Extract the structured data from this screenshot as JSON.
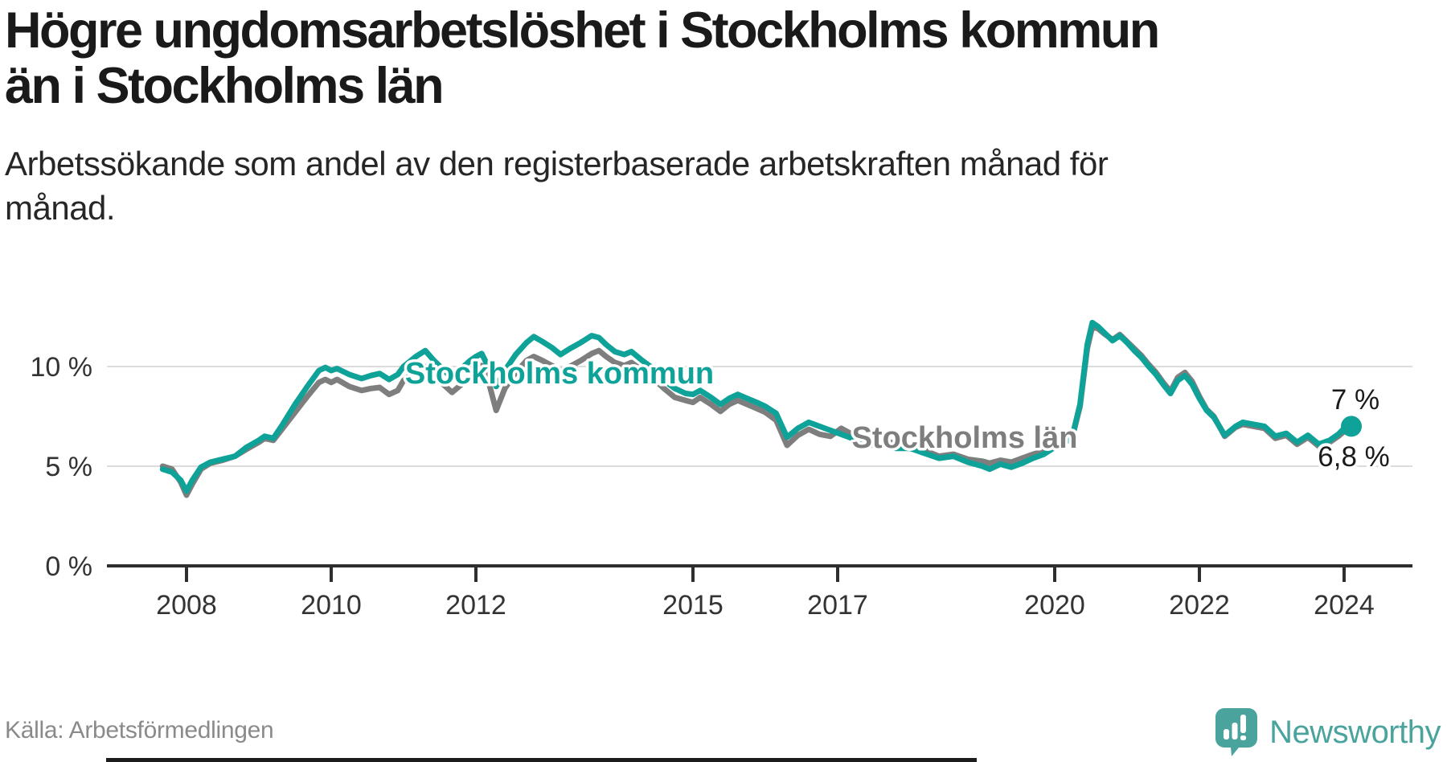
{
  "header": {
    "title_lines": [
      "Högre ungdomsarbetslöshet i Stockholms kommun",
      "än i Stockholms län"
    ],
    "subtitle_lines": [
      "Arbetssökande som andel av den registerbaserade arbetskraften månad för",
      "månad."
    ]
  },
  "footer": {
    "source": "Källa: Arbetsförmedlingen",
    "brand_name": "Newsworthy"
  },
  "colors": {
    "accent_teal": "#0fa298",
    "series_gray": "#7e7e7e",
    "logo_teal": "#4aa49d",
    "gridline": "#dcdcdc",
    "axis": "#2e2e2e",
    "tick_label": "#333333",
    "end_label": "#1a1a1a"
  },
  "chart_data": {
    "type": "line",
    "unit": "%",
    "x_axis": {
      "ticks": [
        {
          "year": 2008,
          "label": "2008"
        },
        {
          "year": 2010,
          "label": "2010"
        },
        {
          "year": 2012,
          "label": "2012"
        },
        {
          "year": 2015,
          "label": "2015"
        },
        {
          "year": 2017,
          "label": "2017"
        },
        {
          "year": 2020,
          "label": "2020"
        },
        {
          "year": 2022,
          "label": "2022"
        },
        {
          "year": 2024,
          "label": "2024"
        }
      ],
      "range": [
        2006.9,
        2024.95
      ]
    },
    "y_axis": {
      "ticks": [
        {
          "value": 0,
          "label": "0 %"
        },
        {
          "value": 5,
          "label": "5 %"
        },
        {
          "value": 10,
          "label": "10 %"
        }
      ],
      "range": [
        0,
        15
      ],
      "grid": true
    },
    "legend_position": "inline-labels",
    "series": [
      {
        "id": "kommun",
        "name": "Stockholms kommun",
        "color": "#0fa298",
        "end_label": "7 %",
        "end_value": 7.0
      },
      {
        "id": "lan",
        "name": "Stockholms län",
        "color": "#7e7e7e",
        "end_label": "6,8 %",
        "end_value": 6.8
      }
    ],
    "points_format": [
      "year",
      "kommun",
      "lan"
    ],
    "points": [
      [
        2007.67,
        4.85,
        5.0
      ],
      [
        2007.8,
        4.7,
        4.85
      ],
      [
        2007.92,
        4.3,
        4.2
      ],
      [
        2008.0,
        3.75,
        3.55
      ],
      [
        2008.08,
        4.3,
        4.1
      ],
      [
        2008.2,
        4.95,
        4.85
      ],
      [
        2008.33,
        5.2,
        5.15
      ],
      [
        2008.5,
        5.35,
        5.3
      ],
      [
        2008.67,
        5.5,
        5.5
      ],
      [
        2008.83,
        5.95,
        5.85
      ],
      [
        2009.0,
        6.3,
        6.2
      ],
      [
        2009.08,
        6.5,
        6.4
      ],
      [
        2009.2,
        6.4,
        6.3
      ],
      [
        2009.33,
        7.1,
        6.9
      ],
      [
        2009.5,
        8.1,
        7.7
      ],
      [
        2009.67,
        9.0,
        8.5
      ],
      [
        2009.83,
        9.8,
        9.2
      ],
      [
        2009.92,
        9.95,
        9.35
      ],
      [
        2010.0,
        9.8,
        9.2
      ],
      [
        2010.08,
        9.9,
        9.35
      ],
      [
        2010.25,
        9.6,
        9.0
      ],
      [
        2010.42,
        9.4,
        8.8
      ],
      [
        2010.55,
        9.55,
        8.9
      ],
      [
        2010.67,
        9.65,
        8.95
      ],
      [
        2010.8,
        9.35,
        8.6
      ],
      [
        2010.92,
        9.6,
        8.8
      ],
      [
        2011.0,
        10.0,
        9.3
      ],
      [
        2011.17,
        10.5,
        9.8
      ],
      [
        2011.3,
        10.8,
        10.0
      ],
      [
        2011.42,
        10.3,
        9.5
      ],
      [
        2011.55,
        9.85,
        9.1
      ],
      [
        2011.67,
        9.4,
        8.7
      ],
      [
        2011.8,
        9.9,
        9.1
      ],
      [
        2011.92,
        10.3,
        9.6
      ],
      [
        2012.0,
        10.5,
        9.9
      ],
      [
        2012.08,
        10.65,
        10.05
      ],
      [
        2012.17,
        10.0,
        9.3
      ],
      [
        2012.28,
        9.0,
        7.8
      ],
      [
        2012.4,
        9.8,
        8.9
      ],
      [
        2012.55,
        10.6,
        9.7
      ],
      [
        2012.7,
        11.2,
        10.3
      ],
      [
        2012.8,
        11.5,
        10.5
      ],
      [
        2012.92,
        11.25,
        10.3
      ],
      [
        2013.05,
        10.95,
        10.05
      ],
      [
        2013.17,
        10.6,
        9.8
      ],
      [
        2013.3,
        10.9,
        10.0
      ],
      [
        2013.45,
        11.2,
        10.3
      ],
      [
        2013.6,
        11.55,
        10.65
      ],
      [
        2013.7,
        11.45,
        10.8
      ],
      [
        2013.8,
        11.1,
        10.5
      ],
      [
        2013.92,
        10.75,
        10.2
      ],
      [
        2014.05,
        10.6,
        10.05
      ],
      [
        2014.15,
        10.75,
        10.2
      ],
      [
        2014.3,
        10.3,
        9.8
      ],
      [
        2014.45,
        9.9,
        9.4
      ],
      [
        2014.6,
        9.3,
        8.9
      ],
      [
        2014.75,
        8.9,
        8.45
      ],
      [
        2014.9,
        8.65,
        8.3
      ],
      [
        2015.0,
        8.6,
        8.2
      ],
      [
        2015.1,
        8.8,
        8.45
      ],
      [
        2015.25,
        8.45,
        8.1
      ],
      [
        2015.38,
        8.1,
        7.75
      ],
      [
        2015.5,
        8.4,
        8.1
      ],
      [
        2015.62,
        8.6,
        8.3
      ],
      [
        2015.75,
        8.4,
        8.1
      ],
      [
        2015.88,
        8.2,
        7.9
      ],
      [
        2016.0,
        8.0,
        7.7
      ],
      [
        2016.15,
        7.65,
        7.3
      ],
      [
        2016.3,
        6.45,
        6.05
      ],
      [
        2016.45,
        6.9,
        6.55
      ],
      [
        2016.6,
        7.2,
        6.85
      ],
      [
        2016.75,
        7.0,
        6.6
      ],
      [
        2016.9,
        6.8,
        6.5
      ],
      [
        2017.05,
        6.6,
        6.9
      ],
      [
        2017.2,
        6.4,
        6.6
      ],
      [
        2017.4,
        6.0,
        6.2
      ],
      [
        2017.6,
        6.2,
        6.4
      ],
      [
        2017.8,
        5.9,
        6.1
      ],
      [
        2018.0,
        5.9,
        6.0
      ],
      [
        2018.2,
        5.65,
        5.8
      ],
      [
        2018.4,
        5.4,
        5.5
      ],
      [
        2018.6,
        5.5,
        5.6
      ],
      [
        2018.8,
        5.2,
        5.35
      ],
      [
        2019.0,
        5.0,
        5.25
      ],
      [
        2019.1,
        4.85,
        5.15
      ],
      [
        2019.25,
        5.1,
        5.3
      ],
      [
        2019.4,
        4.95,
        5.2
      ],
      [
        2019.55,
        5.15,
        5.4
      ],
      [
        2019.7,
        5.4,
        5.6
      ],
      [
        2019.85,
        5.6,
        5.75
      ],
      [
        2020.0,
        5.95,
        6.0
      ],
      [
        2020.15,
        6.2,
        6.2
      ],
      [
        2020.25,
        6.6,
        6.55
      ],
      [
        2020.35,
        8.1,
        8.0
      ],
      [
        2020.45,
        11.1,
        10.9
      ],
      [
        2020.52,
        12.2,
        12.0
      ],
      [
        2020.6,
        12.0,
        11.9
      ],
      [
        2020.7,
        11.65,
        11.6
      ],
      [
        2020.8,
        11.3,
        11.35
      ],
      [
        2020.9,
        11.55,
        11.6
      ],
      [
        2021.0,
        11.2,
        11.25
      ],
      [
        2021.1,
        10.8,
        10.9
      ],
      [
        2021.2,
        10.45,
        10.55
      ],
      [
        2021.3,
        10.0,
        10.1
      ],
      [
        2021.4,
        9.6,
        9.7
      ],
      [
        2021.5,
        9.1,
        9.2
      ],
      [
        2021.6,
        8.65,
        8.75
      ],
      [
        2021.7,
        9.3,
        9.45
      ],
      [
        2021.8,
        9.55,
        9.7
      ],
      [
        2021.9,
        9.1,
        9.25
      ],
      [
        2022.0,
        8.4,
        8.5
      ],
      [
        2022.1,
        7.8,
        7.85
      ],
      [
        2022.2,
        7.45,
        7.5
      ],
      [
        2022.35,
        6.55,
        6.5
      ],
      [
        2022.5,
        7.0,
        6.95
      ],
      [
        2022.6,
        7.2,
        7.1
      ],
      [
        2022.75,
        7.1,
        7.0
      ],
      [
        2022.9,
        7.0,
        6.9
      ],
      [
        2023.05,
        6.5,
        6.4
      ],
      [
        2023.2,
        6.65,
        6.55
      ],
      [
        2023.35,
        6.2,
        6.1
      ],
      [
        2023.5,
        6.55,
        6.45
      ],
      [
        2023.65,
        6.1,
        6.0
      ],
      [
        2023.8,
        6.3,
        6.2
      ],
      [
        2023.92,
        6.6,
        6.5
      ],
      [
        2024.0,
        6.9,
        6.75
      ],
      [
        2024.1,
        7.0,
        6.8
      ]
    ]
  }
}
